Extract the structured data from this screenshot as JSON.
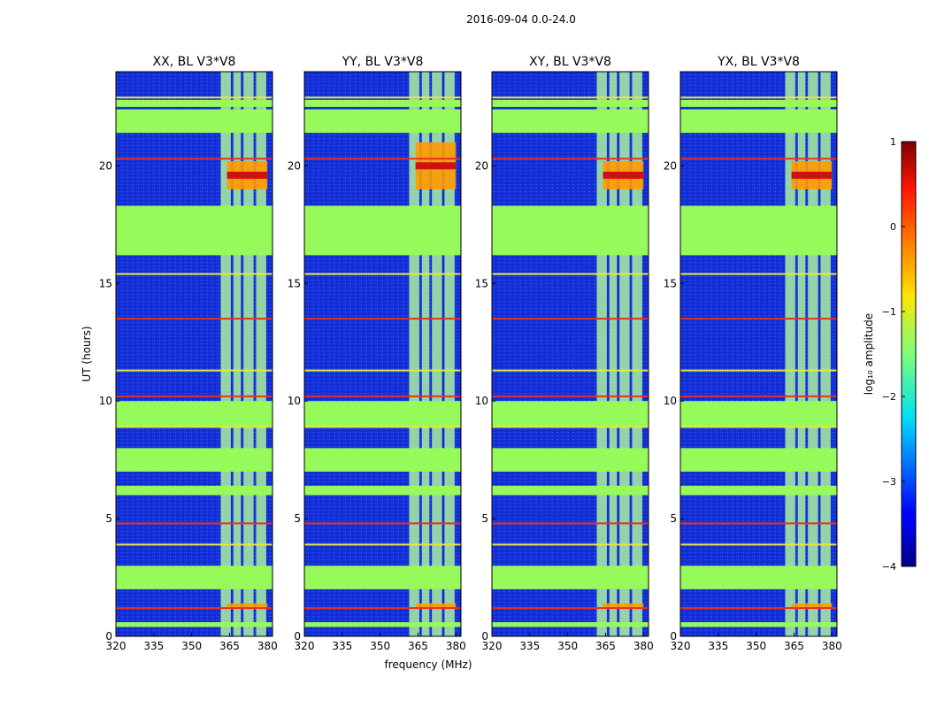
{
  "chart_data": {
    "type": "heatmap",
    "suptitle": "2016-09-04 0.0-24.0",
    "xlabel": "frequency (MHz)",
    "ylabel": "UT (hours)",
    "xlim": [
      320,
      382
    ],
    "ylim": [
      0,
      24
    ],
    "xticks": [
      320,
      335,
      350,
      365,
      380
    ],
    "yticks": [
      0,
      5,
      10,
      15,
      20
    ],
    "colorbar": {
      "label": "log₁₀ amplitude",
      "range": [
        -4,
        1
      ],
      "ticks": [
        "1",
        "0",
        "−1",
        "−2",
        "−3",
        "−4"
      ],
      "colormap": "jet"
    },
    "colors": {
      "low_background": "#1428d2",
      "flagged": "#96fa5a",
      "rfi_band": "#aaf0a0",
      "line_red": "#e83020",
      "line_yellow": "#e8e840",
      "spot_high": "#d01010",
      "spot_mid": "#ff9a00"
    },
    "flagged_time_ranges_hours": [
      [
        0.4,
        0.6
      ],
      [
        2.0,
        3.0
      ],
      [
        6.0,
        6.4
      ],
      [
        7.0,
        8.0
      ],
      [
        8.9,
        10.0
      ],
      [
        16.2,
        18.3
      ],
      [
        21.4,
        22.4
      ],
      [
        22.5,
        22.8
      ]
    ],
    "rfi_columns_mhz": [
      [
        361.5,
        365.5
      ],
      [
        366.5,
        369.5
      ],
      [
        370.5,
        374.5
      ],
      [
        375.5,
        379.5
      ]
    ],
    "panels": [
      {
        "title": "XX, BL V3*V8",
        "bright_hours": [
          [
            19.0,
            20.2
          ],
          [
            6.0,
            6.4
          ],
          [
            1.2,
            1.4
          ]
        ]
      },
      {
        "title": "YY, BL V3*V8",
        "bright_hours": [
          [
            19.0,
            21.0
          ],
          [
            6.0,
            6.4
          ],
          [
            1.2,
            1.4
          ]
        ]
      },
      {
        "title": "XY, BL V3*V8",
        "bright_hours": [
          [
            19.0,
            20.2
          ],
          [
            6.0,
            6.4
          ],
          [
            1.2,
            1.4
          ]
        ]
      },
      {
        "title": "YX, BL V3*V8",
        "bright_hours": [
          [
            19.0,
            20.2
          ],
          [
            6.0,
            6.4
          ],
          [
            1.2,
            1.4
          ]
        ]
      }
    ]
  }
}
